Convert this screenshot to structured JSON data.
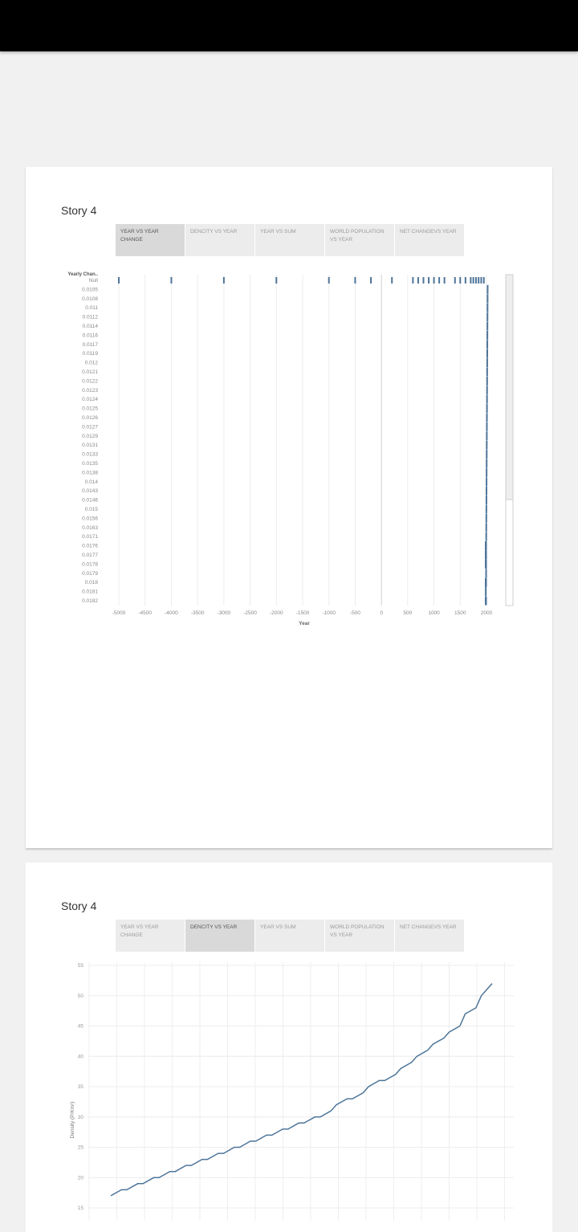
{
  "stories": [
    {
      "title": "Story 4",
      "tabs": [
        {
          "label": "YEAR VS YEAR CHANGE",
          "active": true
        },
        {
          "label": "DENCITY VS YEAR",
          "active": false
        },
        {
          "label": "YEAR VS SUM",
          "active": false
        },
        {
          "label": "WORLD POPULATION VS YEAR",
          "active": false
        },
        {
          "label": "NET CHANGEVS YEAR",
          "active": false
        }
      ]
    },
    {
      "title": "Story 4",
      "tabs": [
        {
          "label": "YEAR VS YEAR CHANGE",
          "active": false
        },
        {
          "label": "DENCITY VS YEAR",
          "active": true
        },
        {
          "label": "YEAR VS SUM",
          "active": false
        },
        {
          "label": "WORLD POPULATION VS YEAR",
          "active": false
        },
        {
          "label": "NET CHANGEVS YEAR",
          "active": false
        }
      ]
    }
  ],
  "chart_data": [
    {
      "type": "bar",
      "xlabel": "Year",
      "ylabel": "Yearly Chan..",
      "xlim": [
        -5000,
        2000
      ],
      "x_ticks": [
        "-5000",
        "-4500",
        "-4000",
        "-3500",
        "-3000",
        "-2500",
        "-2000",
        "-1500",
        "-1000",
        "-500",
        "0",
        "500",
        "1000",
        "1500",
        "2000"
      ],
      "x_tick_values": [
        -5000,
        -4500,
        -4000,
        -3500,
        -3000,
        -2500,
        -2000,
        -1500,
        -1000,
        -500,
        0,
        500,
        1000,
        1500,
        2000
      ],
      "categories": [
        "Null",
        "0.0105",
        "0.0108",
        "0.011",
        "0.0112",
        "0.0114",
        "0.0116",
        "0.0117",
        "0.0119",
        "0.012",
        "0.0121",
        "0.0122",
        "0.0123",
        "0.0124",
        "0.0125",
        "0.0126",
        "0.0127",
        "0.0129",
        "0.0131",
        "0.0133",
        "0.0135",
        "0.0138",
        "0.014",
        "0.0143",
        "0.0146",
        "0.015",
        "0.0156",
        "0.0163",
        "0.0171",
        "0.0176",
        "0.0177",
        "0.0178",
        "0.0179",
        "0.018",
        "0.0181",
        "0.0182"
      ],
      "null_years": [
        -5000,
        -4000,
        -3000,
        -2000,
        -1000,
        -500,
        -200,
        200,
        600,
        700,
        800,
        900,
        1000,
        1100,
        1200,
        1400,
        1500,
        1600,
        1700,
        1750,
        1800,
        1850,
        1900,
        1950
      ],
      "row_years": [
        [
          2022
        ],
        [
          2021
        ],
        [
          2020
        ],
        [
          2019
        ],
        [
          2018
        ],
        [
          2017
        ],
        [
          2016
        ],
        [
          2015
        ],
        [
          2014
        ],
        [
          2013
        ],
        [
          2012
        ],
        [
          2011
        ],
        [
          2010
        ],
        [
          2009
        ],
        [
          2008
        ],
        [
          2007
        ],
        [
          2006
        ],
        [
          2005
        ],
        [
          2004
        ],
        [
          2003
        ],
        [
          2002
        ],
        [
          2001
        ],
        [
          2000
        ],
        [
          1999
        ],
        [
          1998
        ],
        [
          1997
        ],
        [
          1996
        ],
        [
          1995
        ],
        [
          1985,
          1986,
          1987,
          1988,
          1989,
          1990,
          1991
        ],
        [
          1985,
          1986,
          1987,
          1988,
          1989,
          1990,
          1991
        ],
        [
          1986,
          1987,
          1988,
          1989,
          1990,
          1991,
          1992
        ],
        [
          1993
        ],
        [
          1985,
          1986,
          1987,
          1988,
          1989,
          1990,
          1991,
          1992
        ],
        [
          1986
        ],
        [
          1986,
          1987,
          1988,
          1989,
          1990,
          1991
        ]
      ],
      "grid": true,
      "scrollbar": true
    },
    {
      "type": "line",
      "xlabel": "",
      "ylabel": "Density (P/Km²)",
      "ylim": [
        15,
        55
      ],
      "y_ticks": [
        "15",
        "20",
        "25",
        "30",
        "35",
        "40",
        "45",
        "50",
        "55"
      ],
      "y_tick_values": [
        15,
        20,
        25,
        30,
        35,
        40,
        45,
        50,
        55
      ],
      "x": [
        1951,
        1953,
        1954,
        1956,
        1957,
        1959,
        1960,
        1962,
        1963,
        1965,
        1966,
        1968,
        1969,
        1971,
        1972,
        1974,
        1975,
        1977,
        1978,
        1980,
        1981,
        1983,
        1984,
        1986,
        1987,
        1989,
        1990,
        1992,
        1993,
        1995,
        1996,
        1998,
        1999,
        2001,
        2002,
        2004,
        2005,
        2007,
        2008,
        2010,
        2011,
        2013,
        2014,
        2016,
        2017,
        2019,
        2020,
        2022
      ],
      "values": [
        17,
        18,
        18,
        19,
        19,
        20,
        20,
        21,
        21,
        22,
        22,
        23,
        23,
        24,
        24,
        25,
        25,
        26,
        26,
        27,
        27,
        28,
        28,
        29,
        29,
        30,
        30,
        31,
        32,
        33,
        33,
        34,
        35,
        36,
        36,
        37,
        38,
        39,
        40,
        41,
        42,
        43,
        44,
        45,
        47,
        48,
        50,
        52
      ],
      "grid": true
    }
  ]
}
